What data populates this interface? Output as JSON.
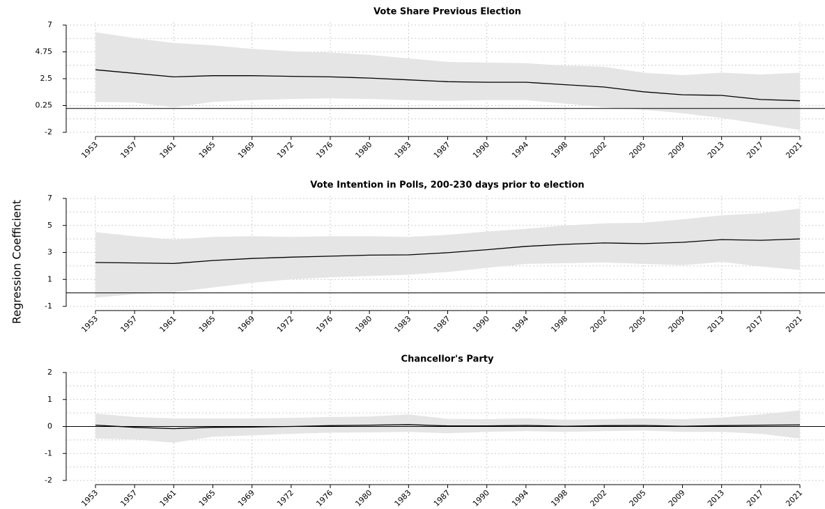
{
  "figure": {
    "ylabel": "Regression Coefficient"
  },
  "chart_data": [
    {
      "type": "line",
      "title": "Vote Share Previous Election",
      "x": [
        "1953",
        "1957",
        "1961",
        "1965",
        "1969",
        "1972",
        "1976",
        "1980",
        "1983",
        "1987",
        "1990",
        "1994",
        "1998",
        "2002",
        "2005",
        "2009",
        "2013",
        "2017",
        "2021"
      ],
      "ylim": [
        -2,
        7
      ],
      "yticks": [
        "7",
        "4.75",
        "2.5",
        "0.25",
        "-2"
      ],
      "ytick_values": [
        7,
        4.75,
        2.5,
        0.25,
        -2
      ],
      "hline": 0,
      "series": [
        {
          "values": [
            3.25,
            2.95,
            2.65,
            2.75,
            2.75,
            2.7,
            2.65,
            2.55,
            2.4,
            2.25,
            2.2,
            2.2,
            2.0,
            1.8,
            1.4,
            1.15,
            1.1,
            0.75,
            0.65
          ],
          "lower": [
            0.55,
            0.5,
            0.1,
            0.55,
            0.7,
            0.8,
            0.85,
            0.8,
            0.7,
            0.65,
            0.7,
            0.7,
            0.4,
            0.1,
            -0.1,
            -0.4,
            -0.8,
            -1.3,
            -1.8
          ],
          "upper": [
            6.4,
            5.9,
            5.5,
            5.3,
            5.0,
            4.8,
            4.7,
            4.5,
            4.2,
            3.9,
            3.85,
            3.8,
            3.6,
            3.5,
            3.0,
            2.8,
            3.0,
            2.85,
            3.0
          ]
        }
      ],
      "grid": true,
      "band_color": "#e5e5e5",
      "line_color": "#000000"
    },
    {
      "type": "line",
      "title": "Vote Intention in Polls, 200-230 days prior to election",
      "x": [
        "1953",
        "1957",
        "1961",
        "1965",
        "1969",
        "1972",
        "1976",
        "1980",
        "1983",
        "1987",
        "1990",
        "1994",
        "1998",
        "2002",
        "2005",
        "2009",
        "2013",
        "2017",
        "2021"
      ],
      "ylim": [
        -1,
        7
      ],
      "yticks": [
        "7",
        "5",
        "3",
        "1",
        "-1"
      ],
      "ytick_values": [
        7,
        5,
        3,
        1,
        -1
      ],
      "hline": 0,
      "series": [
        {
          "values": [
            2.25,
            2.22,
            2.18,
            2.4,
            2.55,
            2.65,
            2.72,
            2.8,
            2.82,
            2.98,
            3.2,
            3.45,
            3.6,
            3.7,
            3.65,
            3.75,
            3.95,
            3.9,
            4.0
          ],
          "lower": [
            -0.35,
            -0.1,
            0.05,
            0.4,
            0.75,
            1.0,
            1.15,
            1.25,
            1.35,
            1.55,
            1.85,
            2.15,
            2.2,
            2.25,
            2.15,
            2.05,
            2.3,
            1.95,
            1.7
          ],
          "upper": [
            4.5,
            4.2,
            3.95,
            4.15,
            4.2,
            4.15,
            4.2,
            4.2,
            4.15,
            4.3,
            4.55,
            4.75,
            5.0,
            5.15,
            5.2,
            5.45,
            5.75,
            5.9,
            6.25
          ]
        }
      ],
      "grid": true,
      "band_color": "#e5e5e5",
      "line_color": "#000000"
    },
    {
      "type": "line",
      "title": "Chancellor's Party",
      "x": [
        "1953",
        "1957",
        "1961",
        "1965",
        "1969",
        "1972",
        "1976",
        "1980",
        "1983",
        "1987",
        "1990",
        "1994",
        "1998",
        "2002",
        "2005",
        "2009",
        "2013",
        "2017",
        "2021"
      ],
      "ylim": [
        -2,
        2
      ],
      "yticks": [
        "2",
        "1",
        "0",
        "-1",
        "-2"
      ],
      "ytick_values": [
        2,
        1,
        0,
        -1,
        -2
      ],
      "hline": 0,
      "series": [
        {
          "values": [
            0.05,
            -0.03,
            -0.08,
            -0.03,
            -0.02,
            0.0,
            0.03,
            0.05,
            0.07,
            0.02,
            0.02,
            0.04,
            0.01,
            0.03,
            0.04,
            0.01,
            0.03,
            0.05,
            0.06
          ],
          "lower": [
            -0.45,
            -0.48,
            -0.6,
            -0.38,
            -0.33,
            -0.27,
            -0.23,
            -0.22,
            -0.2,
            -0.25,
            -0.2,
            -0.17,
            -0.2,
            -0.17,
            -0.15,
            -0.2,
            -0.2,
            -0.27,
            -0.45
          ],
          "upper": [
            0.48,
            0.35,
            0.3,
            0.3,
            0.3,
            0.32,
            0.35,
            0.37,
            0.45,
            0.28,
            0.27,
            0.3,
            0.25,
            0.27,
            0.3,
            0.27,
            0.33,
            0.45,
            0.6
          ]
        }
      ],
      "grid": true,
      "band_color": "#e5e5e5",
      "line_color": "#000000"
    }
  ]
}
